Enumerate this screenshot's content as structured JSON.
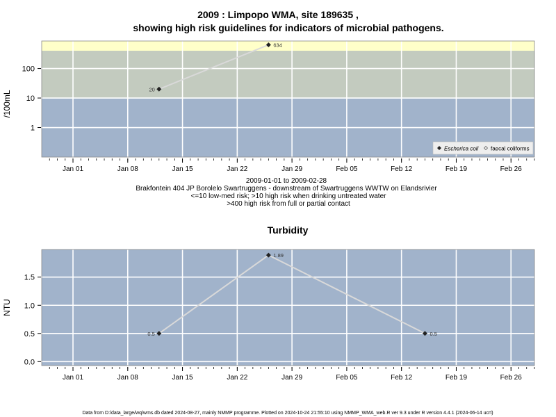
{
  "page": {
    "title_line1": "2009 : Limpopo WMA, site 189635 ,",
    "title_line2": "showing high risk guidelines for indicators of microbial pathogens.",
    "subtitle_lines": [
      "2009-01-01 to 2009-02-28",
      "Brakfontein 404 JP Borolelo Swartruggens - downstream of Swartruggens WWTW on Elandsrivier",
      "<=10 low-med risk; >10 high risk when drinking untreated water",
      ">400 high risk from full or partial contact"
    ],
    "footer": "Data from D:/data_large/wq/wms.db dated 2024-08-27, mainly NMMP programme. Plotted on 2024-10-24 21:55:10 using NMMP_WMA_web.R ver 9.3 under R version 4.4.1 (2024-06-14 ucrt)"
  },
  "colors": {
    "band_low": "#a1b3cb",
    "band_high": "#c3cbbf",
    "band_contact": "#ffffc9",
    "grid": "#ffffff",
    "line": "#d9d9d9",
    "marker": "#222222"
  },
  "chart_data": [
    {
      "type": "line",
      "title": "",
      "ylabel": "/100mL",
      "yscale": "log",
      "ylim": [
        0.1,
        400
      ],
      "xlim": [
        "2008-12-28",
        "2009-03-01"
      ],
      "x_ticks": [
        "Jan 01",
        "Jan 08",
        "Jan 15",
        "Jan 22",
        "Jan 29",
        "Feb 05",
        "Feb 12",
        "Feb 19",
        "Feb 26"
      ],
      "y_ticks": [
        "1",
        "10",
        "100"
      ],
      "bands": [
        {
          "from": 0.1,
          "to": 10
        },
        {
          "from": 10,
          "to": 400
        },
        {
          "from": 400,
          "to": 634
        }
      ],
      "series": [
        {
          "name": "Escherica coli",
          "x": [
            "2009-01-12",
            "2009-01-26"
          ],
          "values": [
            20,
            634
          ],
          "labels": [
            "20",
            "634"
          ]
        }
      ],
      "legend": {
        "position": "bottom-right",
        "entries": [
          "Escherica coli",
          "faecal coliforms"
        ]
      }
    },
    {
      "type": "line",
      "title": "Turbidity",
      "ylabel": "NTU",
      "ylim": [
        -0.07,
        1.99
      ],
      "xlim": [
        "2008-12-28",
        "2009-03-01"
      ],
      "x_ticks": [
        "Jan 01",
        "Jan 08",
        "Jan 15",
        "Jan 22",
        "Jan 29",
        "Feb 05",
        "Feb 12",
        "Feb 19",
        "Feb 26"
      ],
      "y_ticks": [
        "0.0",
        "0.5",
        "1.0",
        "1.5"
      ],
      "series": [
        {
          "x": [
            "2009-01-12",
            "2009-01-26",
            "2009-02-15"
          ],
          "values": [
            0.5,
            1.89,
            0.5
          ],
          "labels": [
            "0.5",
            "1.89",
            "0.5"
          ]
        }
      ]
    }
  ]
}
